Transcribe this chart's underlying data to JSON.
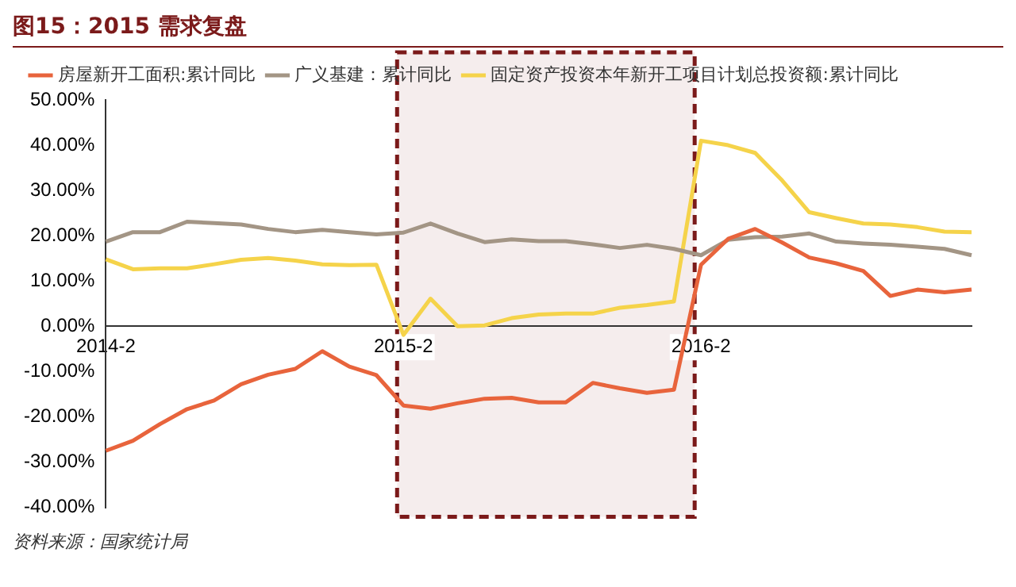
{
  "chart_data": {
    "type": "line",
    "title": "图15：2015 需求复盘",
    "annotations": [
      "资料来源：国家统计局"
    ],
    "categories": [
      "2014-2",
      null,
      null,
      null,
      null,
      null,
      null,
      null,
      null,
      null,
      null,
      "2015-2",
      null,
      null,
      null,
      null,
      null,
      null,
      null,
      null,
      null,
      null,
      "2016-2",
      null,
      null,
      null,
      null,
      null,
      null,
      null,
      null,
      null,
      null
    ],
    "series": [
      {
        "name": "房屋新开工面积:累计同比",
        "color": "#e8643c",
        "values": [
          -27.5,
          -25.3,
          -21.6,
          -18.3,
          -16.4,
          -12.8,
          -10.7,
          -9.4,
          -5.5,
          -8.9,
          -10.8,
          -17.5,
          -18.2,
          -17.0,
          -16.0,
          -15.8,
          -16.8,
          -16.8,
          -12.5,
          -13.7,
          -14.7,
          -14.0,
          13.6,
          19.3,
          21.5,
          18.5,
          15.2,
          13.9,
          12.2,
          6.7,
          8.1,
          7.5,
          8.1
        ]
      },
      {
        "name": "广义基建：累计同比",
        "color": "#a39585",
        "values": [
          18.7,
          20.8,
          20.8,
          23.1,
          22.8,
          22.5,
          21.5,
          20.8,
          21.3,
          20.8,
          20.3,
          20.7,
          22.7,
          20.5,
          18.6,
          19.2,
          18.8,
          18.8,
          18.1,
          17.3,
          18.0,
          17.1,
          15.7,
          19.1,
          19.7,
          19.8,
          20.5,
          18.7,
          18.3,
          18.0,
          17.6,
          17.1,
          15.7
        ]
      },
      {
        "name": "固定资产投资本年新开工项目计划总投资额:累计同比",
        "color": "#f5d34a",
        "values": [
          14.8,
          12.6,
          12.8,
          12.8,
          13.7,
          14.7,
          15.1,
          14.5,
          13.7,
          13.5,
          13.6,
          -1.9,
          6.1,
          0.0,
          0.2,
          1.8,
          2.6,
          2.8,
          2.8,
          4.1,
          4.7,
          5.5,
          41.0,
          40.0,
          38.3,
          32.2,
          25.2,
          23.9,
          22.7,
          22.5,
          21.9,
          20.9,
          20.8
        ]
      }
    ],
    "ylim": [
      -40,
      50
    ],
    "yticks": [
      {
        "value": -40,
        "label": "-40.00%"
      },
      {
        "value": -30,
        "label": "-30.00%"
      },
      {
        "value": -20,
        "label": "-20.00%"
      },
      {
        "value": -10,
        "label": "-10.00%"
      },
      {
        "value": 0,
        "label": "0.00%"
      },
      {
        "value": 10,
        "label": "10.00%"
      },
      {
        "value": 20,
        "label": "20.00%"
      },
      {
        "value": 30,
        "label": "30.00%"
      },
      {
        "value": 40,
        "label": "40.00%"
      },
      {
        "value": 50,
        "label": "50.00%"
      }
    ],
    "bands": [
      {
        "axis": "x",
        "from": "2015-2",
        "to": "2016-2",
        "color": "#7b1a1a"
      }
    ],
    "grid": false,
    "legend": "top",
    "marker": "none",
    "line_style": "solid"
  }
}
